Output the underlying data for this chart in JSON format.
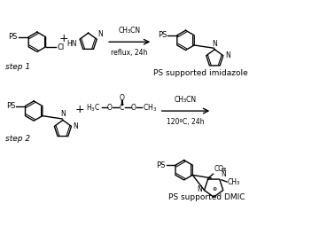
{
  "background_color": "#ffffff",
  "figsize": [
    3.78,
    2.65
  ],
  "dpi": 100,
  "step1_label": "step 1",
  "step2_label": "step 2",
  "product1_label": "PS supported imidazole",
  "product2_label": "PS supported DMIC",
  "arrow1_line1": "CH₃CN",
  "arrow1_line2": "reflux, 24h",
  "arrow2_line1": "CH₃CN",
  "arrow2_line2": "120ºC, 24h",
  "lc": "#000000",
  "lw": 1.0,
  "fs": 6.0,
  "fs_step": 6.5,
  "fs_cond": 5.5,
  "fs_label": 6.5
}
